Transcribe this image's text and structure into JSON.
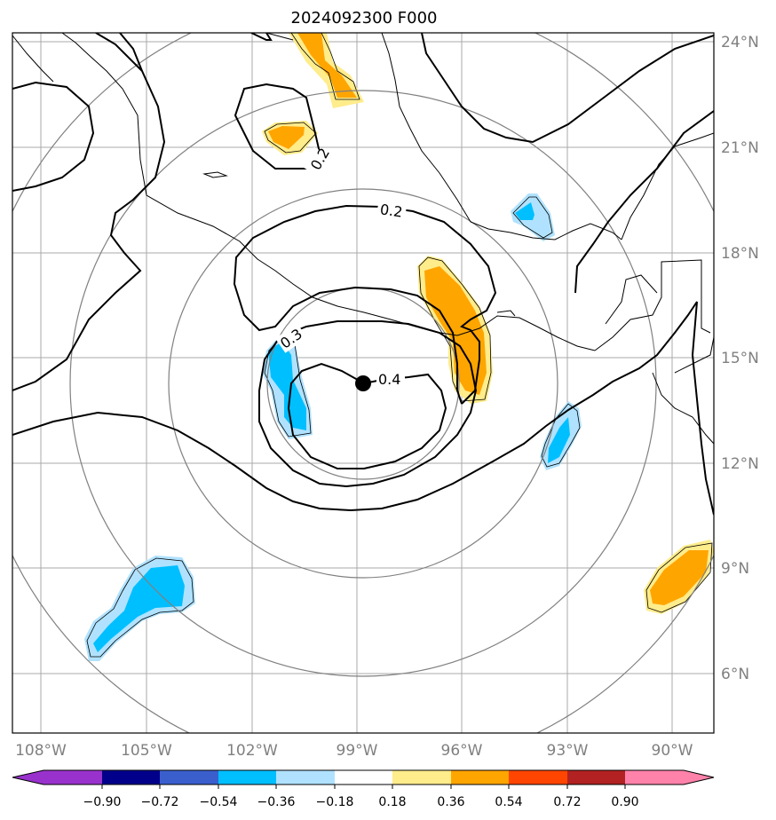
{
  "title": "2024092300 F000",
  "lon_labels": [
    "108°W",
    "105°W",
    "102°W",
    "99°W",
    "96°W",
    "93°W",
    "90°W"
  ],
  "lat_labels": [
    "24°N",
    "21°N",
    "18°N",
    "15°N",
    "12°N",
    "9°N",
    "6°N"
  ],
  "contour_labels": [
    "0.2",
    "0.2",
    "0.3",
    "0.4"
  ],
  "colorbar": {
    "ticks": [
      "−0.90",
      "−0.72",
      "−0.54",
      "−0.36",
      "−0.18",
      "0.18",
      "0.36",
      "0.54",
      "0.72",
      "0.90"
    ],
    "colors": [
      "#9932cc",
      "#00008b",
      "#3a5fcd",
      "#00bfff",
      "#b0e2ff",
      "#ffffff",
      "#ffec8b",
      "#ffa500",
      "#ff4500",
      "#b22222",
      "#ff82ab"
    ]
  },
  "colors": {
    "grid": "#aaaaaa",
    "rings": "#808080",
    "coast": "#000000",
    "pos_light": "#ffec8b",
    "pos_mid": "#ffa500",
    "neg_light": "#b0e2ff",
    "neg_mid": "#00bfff"
  },
  "storm_center": {
    "lon": "98.9°W",
    "lat": "14.3°N"
  }
}
